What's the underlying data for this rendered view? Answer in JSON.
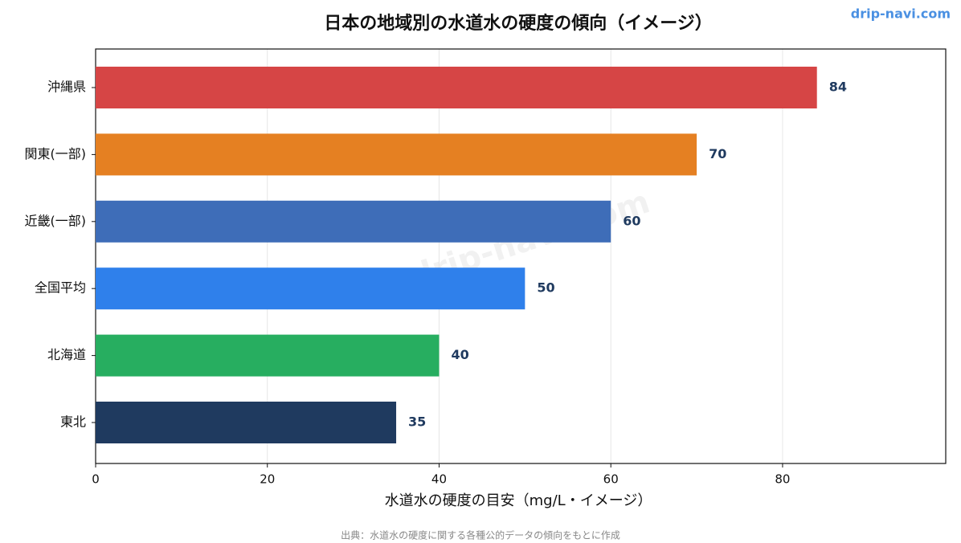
{
  "chart_data": {
    "type": "bar",
    "orientation": "horizontal",
    "title": "日本の地域別の水道水の硬度の傾向（イメージ）",
    "brand": "drip-navi.com",
    "watermark": "drip-navi.com",
    "categories": [
      "沖縄県",
      "関東(一部)",
      "近畿(一部)",
      "全国平均",
      "北海道",
      "東北"
    ],
    "values": [
      84,
      70,
      60,
      50,
      40,
      35
    ],
    "colors": [
      "#d64545",
      "#e58022",
      "#3e6db8",
      "#2f80eb",
      "#27ae60",
      "#1f3a5f"
    ],
    "xlabel": "水道水の硬度の目安（mg/L・イメージ）",
    "xlim": [
      0,
      99
    ],
    "xticks": [
      0,
      20,
      40,
      60,
      80
    ],
    "grid": true,
    "source": "出典：水道水の硬度に関する各種公的データの傾向をもとに作成"
  }
}
